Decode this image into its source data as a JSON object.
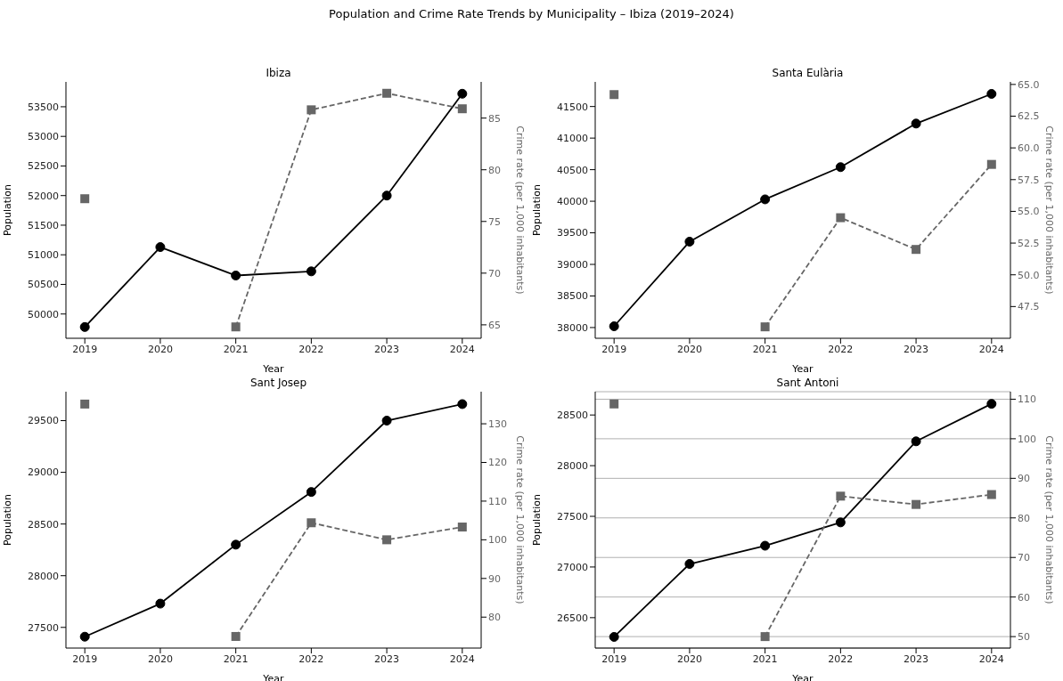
{
  "chart_data": [
    {
      "type": "line",
      "title": "Ibiza",
      "annotations": [
        "Population and Crime Rate Trends by Municipality – Ibiza (2019–2024)"
      ],
      "xlabel": "Year",
      "ylabel": "Population",
      "y2label": "Crime rate (per 1,000 inhabitants)",
      "categories": [
        "2019",
        "2020",
        "2021",
        "2022",
        "2023",
        "2024"
      ],
      "series": [
        {
          "color": "#000000",
          "marker": "circle",
          "line_style": "solid",
          "values": [
            49780,
            51130,
            50650,
            50720,
            52000,
            53720
          ]
        },
        {
          "color": "#666666",
          "marker": "square",
          "line_style": "dashed",
          "axis": "y2",
          "values": [
            77.2,
            null,
            64.8,
            85.8,
            87.4,
            85.9
          ]
        }
      ],
      "ylim": [
        49590,
        53920
      ],
      "yticks": [
        50000,
        50500,
        51000,
        51500,
        52000,
        52500,
        53000,
        53500
      ],
      "y2lim": [
        63.7,
        88.5
      ],
      "y2ticks": [
        65,
        70,
        75,
        80,
        85
      ],
      "grid": false,
      "legend": false
    },
    {
      "type": "line",
      "title": "Santa Eulària",
      "xlabel": "Year",
      "ylabel": "Population",
      "y2label": "Crime rate (per 1,000 inhabitants)",
      "categories": [
        "2019",
        "2020",
        "2021",
        "2022",
        "2023",
        "2024"
      ],
      "series": [
        {
          "color": "#000000",
          "marker": "circle",
          "line_style": "solid",
          "values": [
            38020,
            39360,
            40030,
            40540,
            41230,
            41700
          ]
        },
        {
          "color": "#666666",
          "marker": "square",
          "line_style": "dashed",
          "axis": "y2",
          "values": [
            64.2,
            null,
            45.9,
            54.5,
            52.0,
            58.7
          ]
        }
      ],
      "ylim": [
        37830,
        41890
      ],
      "yticks": [
        38000,
        38500,
        39000,
        39500,
        40000,
        40500,
        41000,
        41500
      ],
      "y2lim": [
        45.0,
        65.2
      ],
      "y2ticks": [
        47.5,
        {
          "value": 50,
          "label": "50.0"
        },
        52.5,
        {
          "value": 55,
          "label": "55.0"
        },
        57.5,
        {
          "value": 60,
          "label": "60.0"
        },
        62.5,
        {
          "value": 65,
          "label": "65.0"
        }
      ],
      "grid": false,
      "legend": false
    },
    {
      "type": "line",
      "title": "Sant Josep",
      "xlabel": "Year",
      "ylabel": "Population",
      "y2label": "Crime rate (per 1,000 inhabitants)",
      "categories": [
        "2019",
        "2020",
        "2021",
        "2022",
        "2023",
        "2024"
      ],
      "series": [
        {
          "color": "#000000",
          "marker": "circle",
          "line_style": "solid",
          "values": [
            27410,
            27730,
            28300,
            28810,
            29500,
            29660
          ]
        },
        {
          "color": "#666666",
          "marker": "square",
          "line_style": "dashed",
          "axis": "y2",
          "values": [
            135.1,
            null,
            75.0,
            104.4,
            100.0,
            103.3
          ]
        }
      ],
      "ylim": [
        27300,
        29780
      ],
      "yticks": [
        27500,
        28000,
        28500,
        29000,
        29500
      ],
      "y2lim": [
        72,
        138.3
      ],
      "y2ticks": [
        80,
        90,
        100,
        110,
        120,
        130
      ],
      "grid": false,
      "legend": false
    },
    {
      "type": "line",
      "title": "Sant Antoni",
      "xlabel": "Year",
      "ylabel": "Population",
      "y2label": "Crime rate (per 1,000 inhabitants)",
      "categories": [
        "2019",
        "2020",
        "2021",
        "2022",
        "2023",
        "2024"
      ],
      "series": [
        {
          "color": "#000000",
          "marker": "circle",
          "line_style": "solid",
          "values": [
            26310,
            27030,
            27210,
            27440,
            28240,
            28610
          ]
        },
        {
          "color": "#666666",
          "marker": "square",
          "line_style": "dashed",
          "axis": "y2",
          "values": [
            108.8,
            null,
            50.0,
            85.5,
            83.4,
            85.9
          ]
        }
      ],
      "ylim": [
        26200,
        28730
      ],
      "yticks": [
        26500,
        27000,
        27500,
        28000,
        28500
      ],
      "y2lim": [
        47.1,
        111.9
      ],
      "y2ticks": [
        50,
        60,
        70,
        80,
        90,
        100,
        110
      ],
      "grid": "y2",
      "legend": false
    }
  ]
}
